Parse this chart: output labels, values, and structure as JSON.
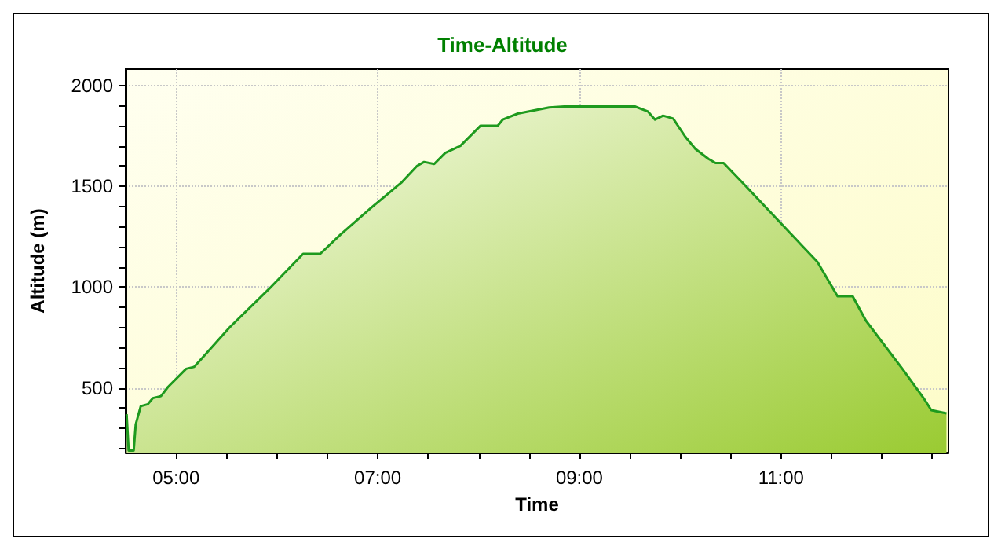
{
  "chart_data": {
    "type": "area",
    "title": "Time-Altitude",
    "xlabel": "Time",
    "ylabel": "Altitude (m)",
    "x": [
      4.51,
      4.53,
      4.58,
      4.6,
      4.65,
      4.72,
      4.77,
      4.85,
      4.92,
      5.1,
      5.18,
      5.53,
      5.93,
      6.26,
      6.43,
      6.63,
      6.94,
      7.24,
      7.39,
      7.46,
      7.56,
      7.67,
      7.82,
      8.02,
      8.19,
      8.24,
      8.39,
      8.7,
      8.85,
      9.4,
      9.55,
      9.68,
      9.75,
      9.83,
      9.93,
      10.05,
      10.15,
      10.28,
      10.35,
      10.43,
      10.66,
      11.01,
      11.36,
      11.56,
      11.71,
      11.84,
      12.21,
      12.42,
      12.49,
      12.64
    ],
    "series": [
      {
        "color": "#1e9a1e",
        "values": [
          370,
          190,
          190,
          320,
          410,
          420,
          450,
          460,
          505,
          595,
          605,
          800,
          995,
          1165,
          1165,
          1260,
          1395,
          1520,
          1600,
          1620,
          1610,
          1665,
          1700,
          1800,
          1800,
          1830,
          1860,
          1890,
          1895,
          1895,
          1895,
          1870,
          1830,
          1850,
          1835,
          1745,
          1685,
          1635,
          1615,
          1615,
          1495,
          1310,
          1125,
          955,
          955,
          835,
          590,
          445,
          390,
          375
        ]
      }
    ],
    "xlim": [
      4.5,
      12.66
    ],
    "xticks": [
      {
        "value": 5,
        "label": "05:00"
      },
      {
        "value": 5.5,
        "label": null
      },
      {
        "value": 6,
        "label": null
      },
      {
        "value": 6.5,
        "label": null
      },
      {
        "value": 7,
        "label": "07:00"
      },
      {
        "value": 7.5,
        "label": null
      },
      {
        "value": 8,
        "label": null
      },
      {
        "value": 8.5,
        "label": null
      },
      {
        "value": 9,
        "label": "09:00"
      },
      {
        "value": 9.5,
        "label": null
      },
      {
        "value": 10,
        "label": null
      },
      {
        "value": 10.5,
        "label": null
      },
      {
        "value": 11,
        "label": "11:00"
      },
      {
        "value": 11.5,
        "label": null
      },
      {
        "value": 12,
        "label": null
      },
      {
        "value": 12.5,
        "label": null
      }
    ],
    "ylim": [
      180,
      2080
    ],
    "yticks": [
      {
        "value": 200,
        "label": null
      },
      {
        "value": 300,
        "label": null
      },
      {
        "value": 400,
        "label": null
      },
      500,
      {
        "value": 600,
        "label": null
      },
      {
        "value": 700,
        "label": null
      },
      {
        "value": 800,
        "label": null
      },
      {
        "value": 900,
        "label": null
      },
      1000,
      {
        "value": 1100,
        "label": null
      },
      {
        "value": 1200,
        "label": null
      },
      {
        "value": 1300,
        "label": null
      },
      {
        "value": 1400,
        "label": null
      },
      1500,
      {
        "value": 1600,
        "label": null
      },
      {
        "value": 1700,
        "label": null
      },
      {
        "value": 1800,
        "label": null
      },
      {
        "value": 1900,
        "label": null
      },
      2000
    ],
    "grid": true,
    "marker": "none",
    "line_style": "solid"
  }
}
